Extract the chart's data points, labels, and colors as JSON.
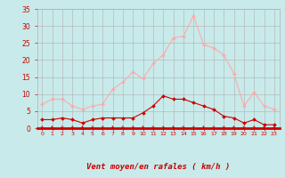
{
  "x": [
    0,
    1,
    2,
    3,
    4,
    5,
    6,
    7,
    8,
    9,
    10,
    11,
    12,
    13,
    14,
    15,
    16,
    17,
    18,
    19,
    20,
    21,
    22,
    23
  ],
  "wind_avg": [
    2.5,
    2.5,
    3.0,
    2.5,
    1.5,
    2.5,
    3.0,
    3.0,
    3.0,
    3.0,
    4.5,
    6.5,
    9.5,
    8.5,
    8.5,
    7.5,
    6.5,
    5.5,
    3.5,
    3.0,
    1.5,
    2.5,
    1.0,
    1.0
  ],
  "wind_gust": [
    7.0,
    8.5,
    8.5,
    6.5,
    5.5,
    6.5,
    7.0,
    11.5,
    13.5,
    16.5,
    14.5,
    19.0,
    21.5,
    26.5,
    27.0,
    33.0,
    24.5,
    23.5,
    21.5,
    16.0,
    6.5,
    10.5,
    6.5,
    5.5
  ],
  "color_avg": "#cc0000",
  "color_gust": "#ffaaaa",
  "bg_color": "#c8eaea",
  "grid_color": "#b0b0b0",
  "xlabel": "Vent moyen/en rafales ( km/h )",
  "xlabel_color": "#cc0000",
  "tick_color": "#cc0000",
  "ylim": [
    0,
    35
  ],
  "yticks": [
    0,
    5,
    10,
    15,
    20,
    25,
    30,
    35
  ],
  "arrow_color": "#cc0000",
  "marker_avg": "D",
  "marker_gust": "D"
}
